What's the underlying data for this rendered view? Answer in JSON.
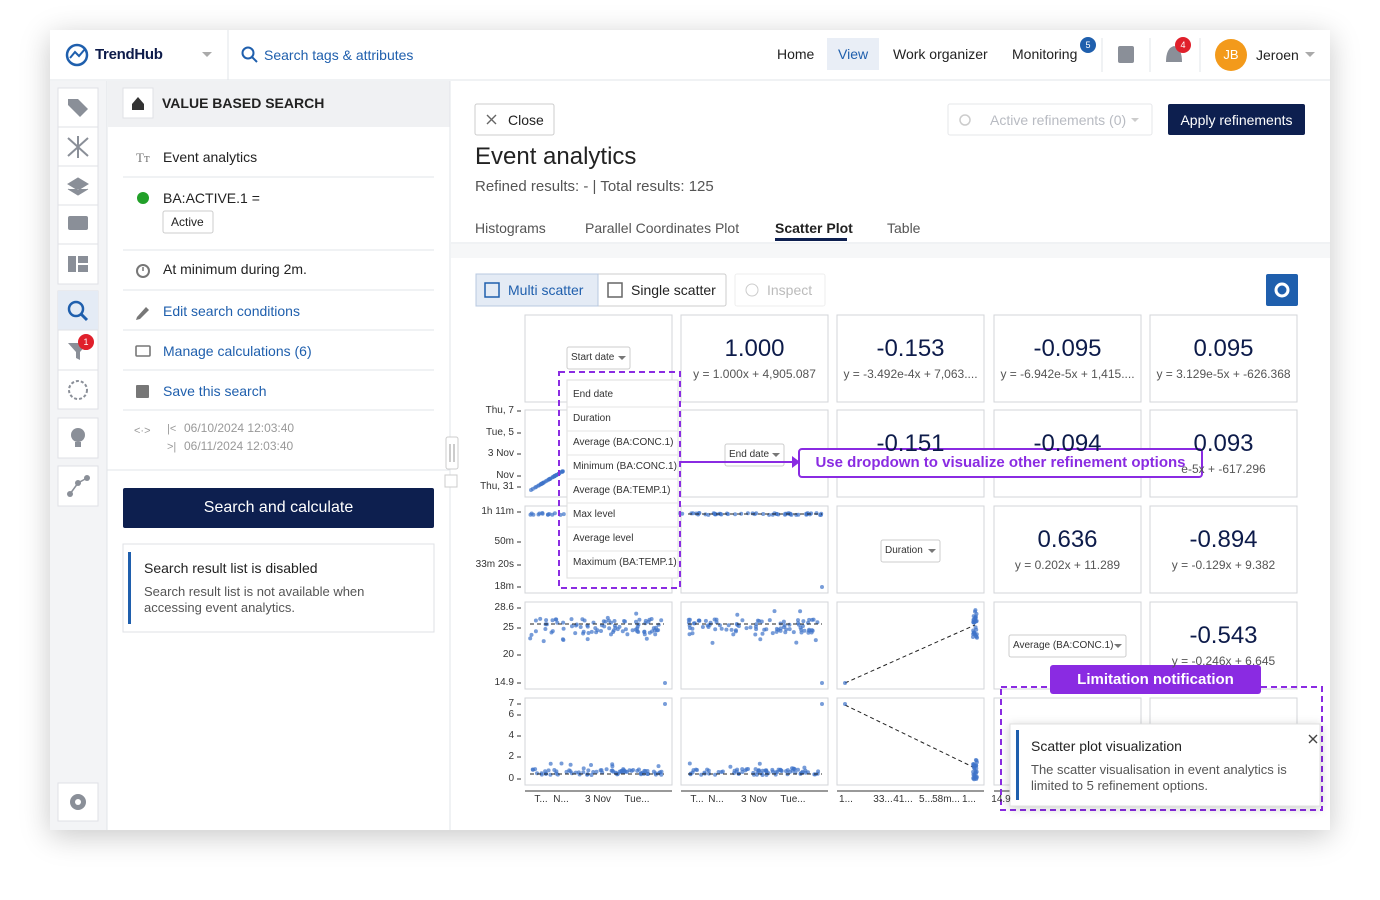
{
  "topbar": {
    "brand": "TrendHub",
    "search": "Search tags & attributes",
    "nav": [
      "Home",
      "View",
      "Work organizer",
      "Monitoring"
    ],
    "monitoring_badge": 5,
    "notification_badge": 4,
    "user_initials": "JB",
    "user_name": "Jeroen"
  },
  "rail": {
    "filter_badge": 1
  },
  "panel": {
    "title": "VALUE BASED SEARCH",
    "search_name": "Event analytics",
    "condition": "BA:ACTIVE.1 =",
    "condition_value": "Active",
    "duration": "At minimum during 2m.",
    "actions": [
      "Edit search conditions",
      "Manage calculations (6)",
      "Save this search"
    ],
    "range_start": "06/10/2024 12:03:40",
    "range_end": "06/11/2024 12:03:40",
    "button": "Search and calculate",
    "notice": {
      "title": "Search result list is disabled",
      "body": "Search result list is not available when accessing event analytics."
    }
  },
  "main": {
    "close": "Close",
    "active_refinements": "Active refinements (0)",
    "apply": "Apply refinements",
    "title": "Event analytics",
    "summary": "Refined results: - | Total results: 125",
    "tabs": [
      "Histograms",
      "Parallel Coordinates Plot",
      "Scatter Plot",
      "Table"
    ],
    "toolbar": [
      "Multi scatter",
      "Single scatter",
      "Inspect"
    ]
  },
  "matrix": {
    "dropdowns": [
      "Start date",
      "End date",
      "Duration",
      "Average (BA:CONC.1)"
    ],
    "correlations": [
      {
        "value": "1.000",
        "equation": "y = 1.000x + 4,905.087"
      },
      {
        "value": "-0.153",
        "equation": "y = -3.492e-4x + 7,063...."
      },
      {
        "value": "-0.095",
        "equation": "y = -6.942e-5x + 1,415...."
      },
      {
        "value": "0.095",
        "equation": "y = 3.129e-5x + -626.368"
      },
      {
        "value": "-0.151"
      },
      {
        "value": "-0.094"
      },
      {
        "value": "0.093",
        "equation": "e-5x + -617.296"
      },
      {
        "value": "0.636",
        "equation": "y = 0.202x + 11.289"
      },
      {
        "value": "-0.894",
        "equation": "y = -0.129x + 9.382"
      },
      {
        "value": "-0.543",
        "equation": "y = -0.246x + 6.645"
      }
    ],
    "y_axis": [
      [
        "Thu, 7",
        "Tue, 5",
        "3 Nov",
        "Nov",
        "Thu, 31"
      ],
      [
        "1h 11m",
        "50m",
        "33m 20s",
        "18m"
      ],
      [
        "28.6",
        "25",
        "20",
        "14.9"
      ],
      [
        "7",
        "6",
        "4",
        "2",
        "0"
      ]
    ],
    "x_axis": [
      [
        "T...",
        "N...",
        "3 Nov",
        "Tue..."
      ],
      [
        "T...",
        "N...",
        "3 Nov",
        "Tue..."
      ],
      [
        "1...",
        "33...",
        "41...",
        "5...",
        "58m...",
        "1..."
      ],
      [
        "14.9"
      ]
    ],
    "dropdown_options": [
      "End date",
      "Duration",
      "Average (BA:CONC.1)",
      "Minimum (BA:CONC.1)",
      "Average (BA:TEMP.1)",
      "Max level",
      "Average level",
      "Maximum (BA:TEMP.1)"
    ]
  },
  "annotations": {
    "dropdown": "Use dropdown to visualize other refinement options",
    "limitation": "Limitation notification"
  },
  "toast": {
    "title": "Scatter plot visualization",
    "body": "The scatter visualisation in event analytics is limited to 5 refinement options."
  }
}
